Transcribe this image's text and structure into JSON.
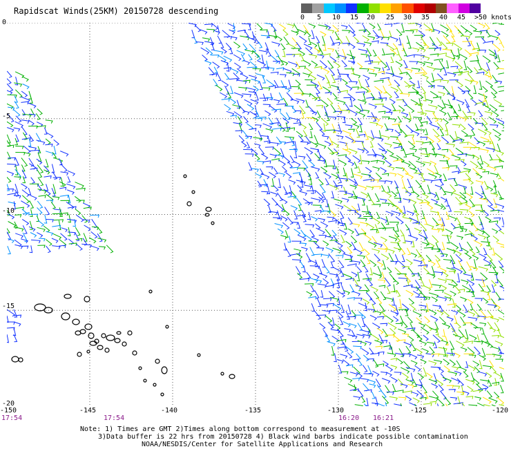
{
  "title": "Rapidscat Winds(25KM) 20150728 descending",
  "legend": {
    "labels": [
      "0",
      "5",
      "10",
      "15",
      "20",
      "25",
      "30",
      "35",
      "40",
      "45",
      ">50 knots"
    ],
    "colors": [
      "#606060",
      "#a0a0a0",
      "#00c8ff",
      "#0090ff",
      "#1030ff",
      "#00b000",
      "#90e000",
      "#ffe000",
      "#ffa000",
      "#ff5000",
      "#e00000",
      "#b00000",
      "#805020",
      "#ff60ff",
      "#d000e0",
      "#5000a0"
    ]
  },
  "axes": {
    "lat_labels": [
      "0",
      "-5",
      "-10",
      "-15",
      "-20"
    ],
    "lon_labels": [
      "-150",
      "-145",
      "-140",
      "-135",
      "-130",
      "-125",
      "-120"
    ]
  },
  "time_labels": [
    "17:54",
    "17:54",
    "16:20",
    "16:21"
  ],
  "notes": [
    "Note: 1) Times are GMT 2)Times along bottom correspond to measurement at -10S",
    "3)Data buffer is 22 hrs from 20150728 4) Black wind barbs indicate possible contamination",
    "NOAA/NESDIS/Center for Satellite Applications and Research"
  ]
}
